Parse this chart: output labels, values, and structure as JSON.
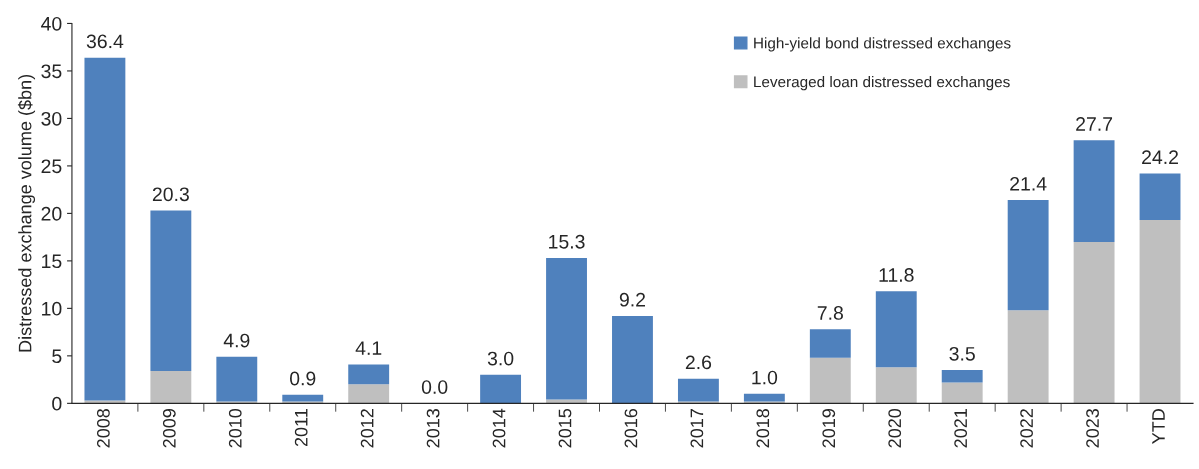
{
  "chart_data": {
    "type": "bar",
    "ylabel": "Distressed exchange volume ($bn)",
    "categories": [
      "2008",
      "2009",
      "2010",
      "2011",
      "2012",
      "2013",
      "2014",
      "2015",
      "2016",
      "2017",
      "2018",
      "2019",
      "2020",
      "2021",
      "2022",
      "2023",
      "YTD"
    ],
    "stacked": true,
    "series": [
      {
        "name": "Leveraged loan distressed exchanges",
        "color": "#bfbfbf",
        "values": [
          0.3,
          3.4,
          0.2,
          0.2,
          2.0,
          0,
          0,
          0.4,
          0,
          0.2,
          0.2,
          4.8,
          3.8,
          2.2,
          9.8,
          17.0,
          19.3
        ]
      },
      {
        "name": "High-yield bond distressed exchanges",
        "color": "#4f81bd",
        "values": [
          36.1,
          16.9,
          4.7,
          0.7,
          2.1,
          0,
          3.0,
          14.9,
          9.2,
          2.4,
          0.8,
          3.0,
          8.0,
          1.3,
          11.6,
          10.7,
          4.9
        ]
      }
    ],
    "totals": [
      "36.4",
      "20.3",
      "4.9",
      "0.9",
      "4.1",
      "0.0",
      "3.0",
      "15.3",
      "9.2",
      "2.6",
      "1.0",
      "7.8",
      "11.8",
      "3.5",
      "21.4",
      "27.7",
      "24.2"
    ],
    "ylim": [
      0,
      40
    ],
    "yticks": [
      0,
      5,
      10,
      15,
      20,
      25,
      30,
      35,
      40
    ],
    "grid": false,
    "legend": "top right"
  }
}
